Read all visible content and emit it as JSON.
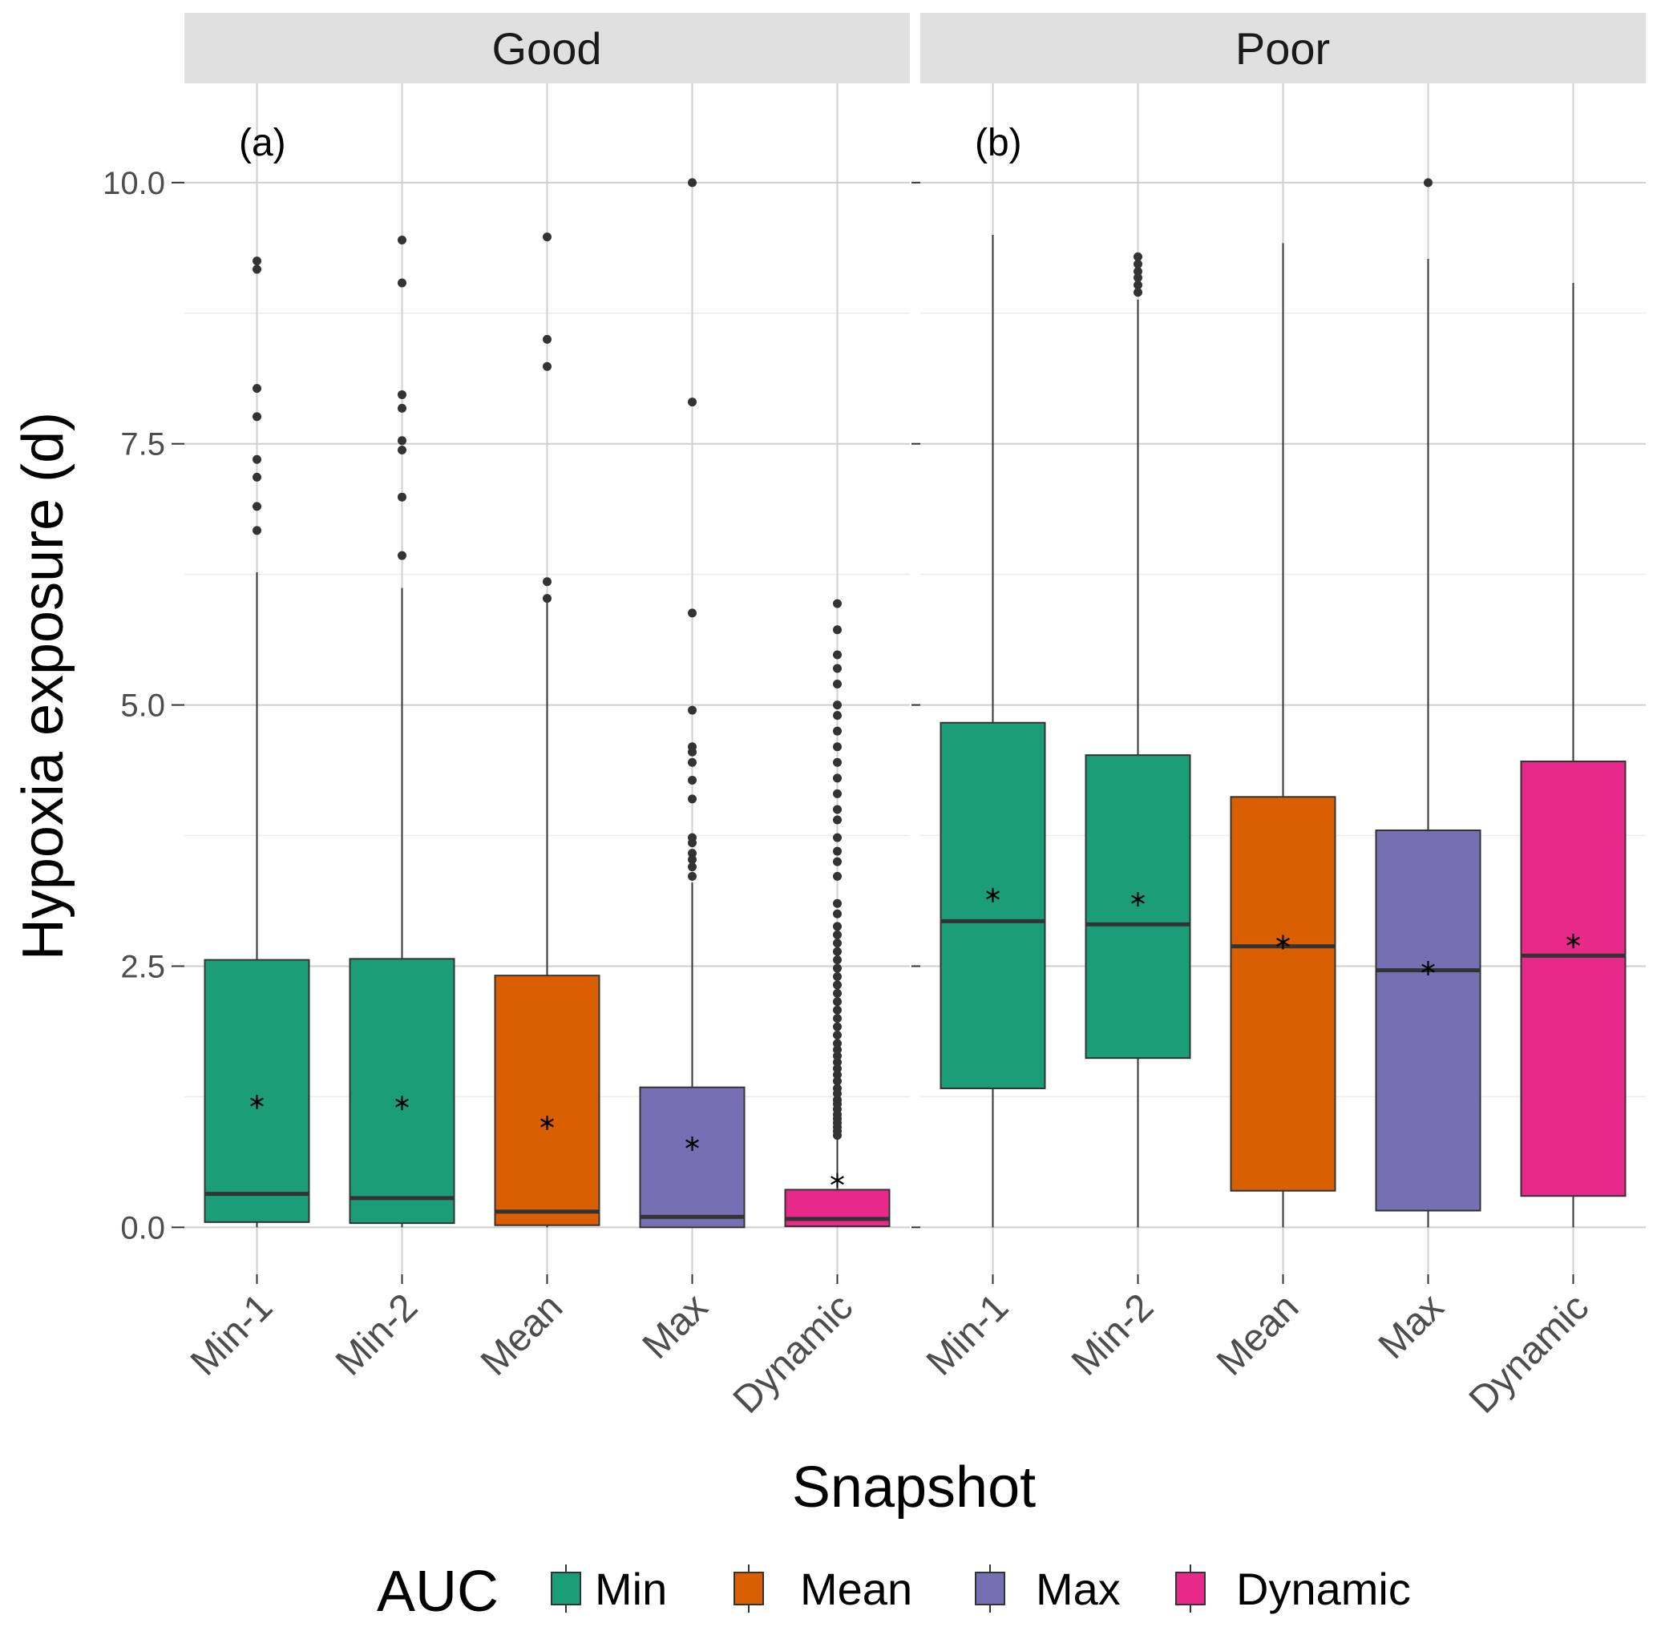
{
  "chart_data": {
    "type": "boxplot",
    "xlabel": "Snapshot",
    "ylabel": "Hypoxia exposure (d)",
    "ylim": [
      -0.45,
      10.95
    ],
    "yticks": [
      "0.0",
      "2.5",
      "5.0",
      "7.5",
      "10.0"
    ],
    "ytick_values": [
      0,
      2.5,
      5,
      7.5,
      10
    ],
    "categories": [
      "Min-1",
      "Min-2",
      "Mean",
      "Max",
      "Dynamic"
    ],
    "legend": {
      "title": "AUC",
      "position": "bottom",
      "items": [
        {
          "label": "Min",
          "color": "#1b9e77"
        },
        {
          "label": "Mean",
          "color": "#d95f02"
        },
        {
          "label": "Max",
          "color": "#7570b3"
        },
        {
          "label": "Dynamic",
          "color": "#e7298a"
        }
      ]
    },
    "panels": [
      {
        "strip": "Good",
        "tag": "(a)",
        "boxes": [
          {
            "category": "Min-1",
            "group": "Min",
            "q1": 0.05,
            "median": 0.32,
            "q3": 2.56,
            "whisker_low": 0.0,
            "whisker_high": 6.27,
            "mean": 1.2,
            "outliers": [
              6.67,
              6.9,
              7.18,
              7.35,
              7.76,
              8.03,
              9.17,
              9.25
            ]
          },
          {
            "category": "Min-2",
            "group": "Min",
            "q1": 0.04,
            "median": 0.28,
            "q3": 2.57,
            "whisker_low": 0.0,
            "whisker_high": 6.12,
            "mean": 1.19,
            "outliers": [
              6.43,
              6.99,
              7.44,
              7.53,
              7.84,
              7.97,
              9.04,
              9.45
            ]
          },
          {
            "category": "Mean",
            "group": "Mean",
            "q1": 0.02,
            "median": 0.15,
            "q3": 2.41,
            "whisker_low": 0.0,
            "whisker_high": 6.0,
            "mean": 1.0,
            "outliers": [
              6.02,
              6.18,
              8.24,
              8.5,
              9.48
            ]
          },
          {
            "category": "Max",
            "group": "Max",
            "q1": 0.0,
            "median": 0.1,
            "q3": 1.34,
            "whisker_low": 0.0,
            "whisker_high": 3.3,
            "mean": 0.8,
            "outliers": [
              3.36,
              3.45,
              3.52,
              3.58,
              3.68,
              3.73,
              4.1,
              4.28,
              4.45,
              4.55,
              4.6,
              4.95,
              5.88,
              7.9,
              10.0
            ]
          },
          {
            "category": "Dynamic",
            "group": "Dynamic",
            "q1": 0.01,
            "median": 0.08,
            "q3": 0.36,
            "whisker_low": 0.0,
            "whisker_high": 0.85,
            "mean": 0.45,
            "outliers": [
              0.88,
              0.92,
              0.96,
              1.0,
              1.04,
              1.08,
              1.13,
              1.18,
              1.22,
              1.28,
              1.33,
              1.4,
              1.46,
              1.52,
              1.58,
              1.64,
              1.7,
              1.76,
              1.84,
              1.92,
              2.0,
              2.08,
              2.16,
              2.24,
              2.32,
              2.4,
              2.48,
              2.56,
              2.64,
              2.72,
              2.8,
              2.88,
              3.0,
              3.1,
              3.36,
              3.5,
              3.6,
              3.73,
              3.9,
              4.0,
              4.15,
              4.3,
              4.45,
              4.6,
              4.75,
              4.9,
              5.0,
              5.2,
              5.35,
              5.48,
              5.72,
              5.97
            ]
          }
        ]
      },
      {
        "strip": "Poor",
        "tag": "(b)",
        "boxes": [
          {
            "category": "Min-1",
            "group": "Min",
            "q1": 1.33,
            "median": 2.93,
            "q3": 4.83,
            "whisker_low": 0.0,
            "whisker_high": 9.5,
            "mean": 3.18,
            "outliers": []
          },
          {
            "category": "Min-2",
            "group": "Min",
            "q1": 1.62,
            "median": 2.9,
            "q3": 4.52,
            "whisker_low": 0.0,
            "whisker_high": 8.88,
            "mean": 3.14,
            "outliers": [
              8.95,
              9.02,
              9.09,
              9.15,
              9.22,
              9.29
            ]
          },
          {
            "category": "Mean",
            "group": "Mean",
            "q1": 0.35,
            "median": 2.69,
            "q3": 4.12,
            "whisker_low": 0.0,
            "whisker_high": 9.42,
            "mean": 2.73,
            "outliers": []
          },
          {
            "category": "Max",
            "group": "Max",
            "q1": 0.16,
            "median": 2.46,
            "q3": 3.8,
            "whisker_low": 0.0,
            "whisker_high": 9.27,
            "mean": 2.48,
            "outliers": [
              10.0
            ]
          },
          {
            "category": "Dynamic",
            "group": "Dynamic",
            "q1": 0.3,
            "median": 2.6,
            "q3": 4.46,
            "whisker_low": 0.0,
            "whisker_high": 9.04,
            "mean": 2.74,
            "outliers": []
          }
        ]
      }
    ]
  }
}
